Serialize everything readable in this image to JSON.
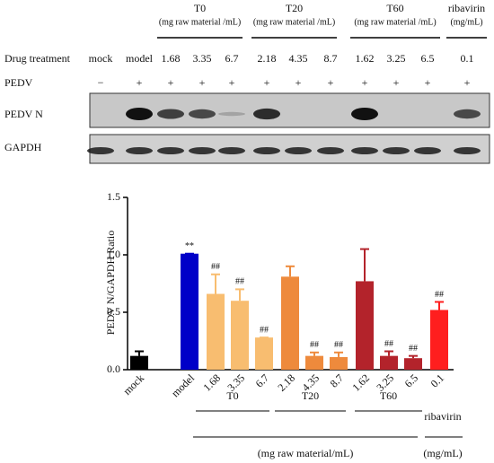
{
  "blot": {
    "groups": [
      {
        "label": "T0",
        "unit": "(mg raw material /mL)"
      },
      {
        "label": "T20",
        "unit": "(mg raw material /mL)"
      },
      {
        "label": "T60",
        "unit": "(mg raw material /mL)"
      },
      {
        "label": "ribavirin",
        "unit": "(mg/mL)"
      }
    ],
    "treatment_label": "Drug treatment",
    "treatments": [
      "mock",
      "model",
      "1.68",
      "3.35",
      "6.7",
      "2.18",
      "4.35",
      "8.7",
      "1.62",
      "3.25",
      "6.5",
      "0.1"
    ],
    "pedv_label": "PEDV",
    "pedv": [
      "−",
      "+",
      "+",
      "+",
      "+",
      "+",
      "+",
      "+",
      "+",
      "+",
      "+",
      "+"
    ],
    "rows": [
      "PEDV N",
      "GAPDH"
    ]
  },
  "chart_data": {
    "type": "bar",
    "y_label": "PEDV N/GAPDH Ratio",
    "categories": [
      "mock",
      "model",
      "1.68",
      "3.35",
      "6.7",
      "2.18",
      "4.35",
      "8.7",
      "1.62",
      "3.25",
      "6.5",
      "0.1"
    ],
    "values": [
      0.12,
      1.01,
      0.66,
      0.6,
      0.28,
      0.81,
      0.12,
      0.11,
      0.77,
      0.12,
      0.1,
      0.52
    ],
    "errors": [
      0.04,
      0,
      0.17,
      0.1,
      0,
      0.09,
      0.03,
      0.04,
      0.28,
      0.04,
      0.02,
      0.07
    ],
    "colors": [
      "#000000",
      "#0000c8",
      "#f8bd70",
      "#f8bd70",
      "#f8bd70",
      "#ee8a3c",
      "#ee8a3c",
      "#ee8a3c",
      "#b3232b",
      "#b3232b",
      "#b3232b",
      "#ff1e1e"
    ],
    "annotations": [
      null,
      "**",
      "##",
      "##",
      "##",
      null,
      "##",
      "##",
      null,
      "##",
      "##",
      "##"
    ],
    "groups": [
      "T0",
      "T20",
      "T60",
      "ribavirin"
    ],
    "units": [
      "(mg raw material/mL)",
      "(mg/mL)"
    ],
    "ylim": [
      0,
      1.5
    ],
    "yticks": [
      {
        "value": 0,
        "label": "0.0"
      },
      0.5,
      {
        "value": 1,
        "label": "1.0"
      },
      1.5
    ]
  }
}
